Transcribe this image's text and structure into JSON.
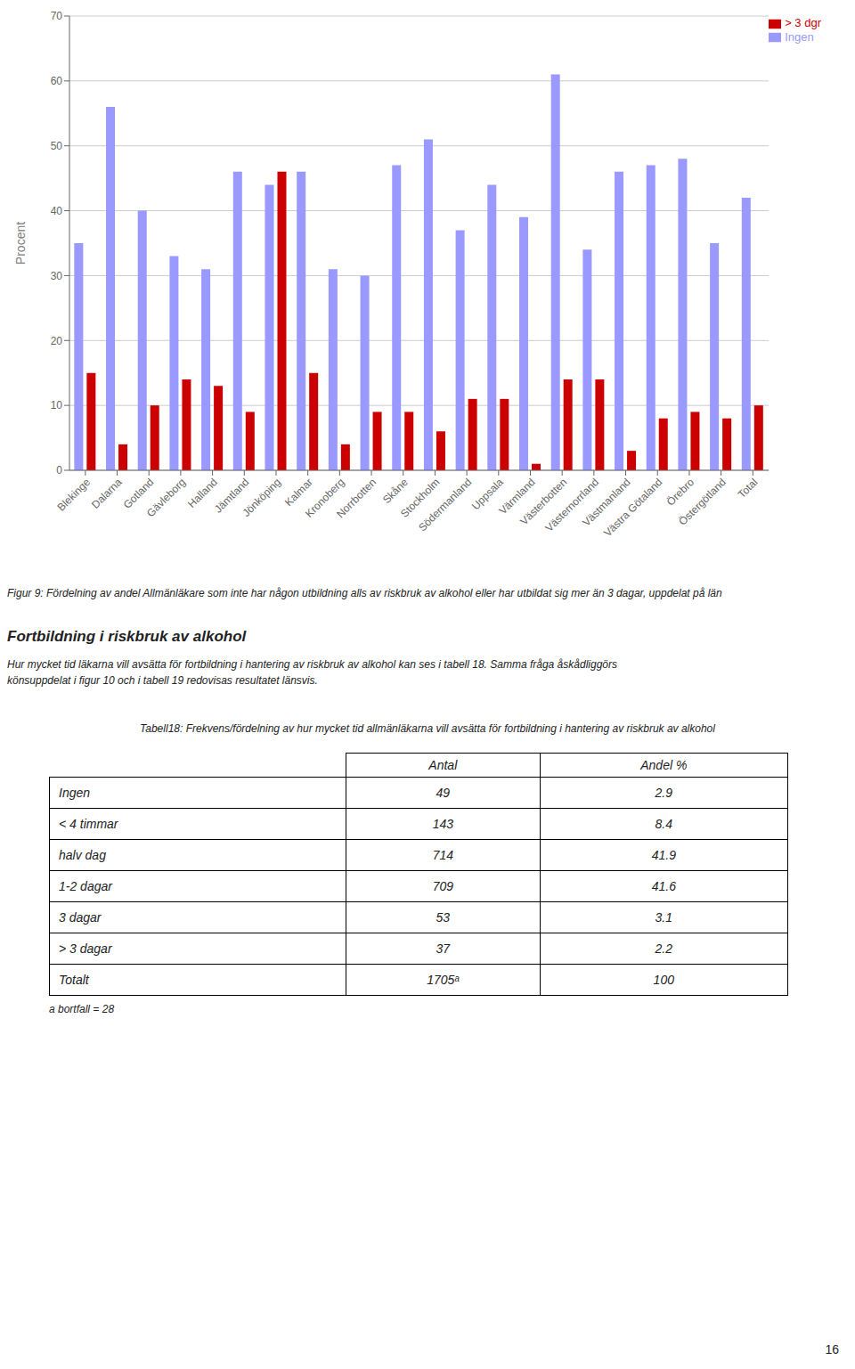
{
  "chart_data": {
    "type": "bar",
    "categories": [
      "Blekinge",
      "Dalarna",
      "Gotland",
      "Gävleborg",
      "Halland",
      "Jämtland",
      "Jönköping",
      "Kalmar",
      "Kronoberg",
      "Norrbotten",
      "Skåne",
      "Stockholm",
      "Södermanland",
      "Uppsala",
      "Värmland",
      "Västerbotten",
      "Västernorrland",
      "Västmanland",
      "Västra Götaland",
      "Örebro",
      "Östergötland",
      "Total"
    ],
    "series": [
      {
        "name": "Ingen",
        "color": "#9999FF",
        "values": [
          35,
          56,
          40,
          33,
          31,
          46,
          44,
          46,
          31,
          30,
          47,
          51,
          37,
          44,
          39,
          61,
          34,
          46,
          47,
          48,
          35,
          42
        ]
      },
      {
        "name": "> 3 dgr",
        "color": "#CC0000",
        "values": [
          15,
          4,
          10,
          14,
          13,
          9,
          46,
          15,
          4,
          9,
          9,
          6,
          11,
          11,
          1,
          14,
          14,
          3,
          8,
          9,
          8,
          10
        ]
      }
    ],
    "ylabel": "Procent",
    "ylim": [
      0,
      70
    ],
    "yticks": [
      0,
      10,
      20,
      30,
      40,
      50,
      60,
      70
    ],
    "grid": true,
    "legend": "upper right"
  },
  "caption": "Figur 9: Fördelning av andel Allmänläkare som inte har någon utbildning alls av riskbruk av alkohol eller har utbildat sig mer än 3 dagar, uppdelat på län",
  "section_title": "Fortbildning i riskbruk av alkohol",
  "section_text": [
    "Hur mycket tid läkarna vill avsätta för fortbildning i hantering av riskbruk av alkohol kan ses i tabell 18. Samma fråga åskådliggörs",
    "könsuppdelat i figur 10 och i tabell 19 redovisas resultatet länsvis."
  ],
  "table": {
    "title": "Tabell18: Frekvens/fördelning av hur mycket tid allmänläkarna vill avsätta för fortbildning i hantering av riskbruk av alkohol",
    "columns": [
      "Antal",
      "Andel %"
    ],
    "rows": [
      [
        "Ingen",
        "49",
        "2.9"
      ],
      [
        "< 4 timmar",
        "143",
        "8.4"
      ],
      [
        "halv dag",
        "714",
        "41.9"
      ],
      [
        "1-2 dagar",
        "709",
        "41.6"
      ],
      [
        "3 dagar",
        "53",
        "3.1"
      ],
      [
        "> 3 dagar",
        "37",
        "2.2"
      ],
      [
        "Totalt",
        "1705ᵃ",
        "100"
      ]
    ],
    "footnote": "a bortfall = 28"
  },
  "page_number": "16"
}
